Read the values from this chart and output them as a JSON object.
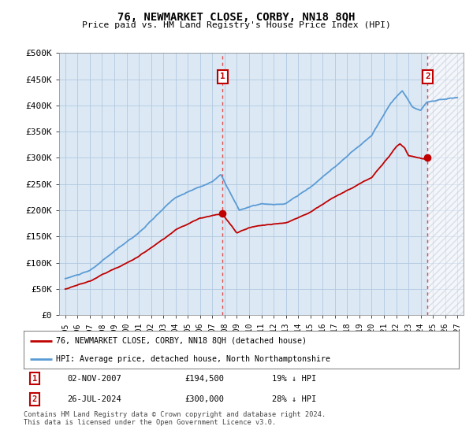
{
  "title": "76, NEWMARKET CLOSE, CORBY, NN18 8QH",
  "subtitle": "Price paid vs. HM Land Registry's House Price Index (HPI)",
  "ylabel_ticks": [
    "£0",
    "£50K",
    "£100K",
    "£150K",
    "£200K",
    "£250K",
    "£300K",
    "£350K",
    "£400K",
    "£450K",
    "£500K"
  ],
  "ylim": [
    0,
    500000
  ],
  "xlim_start": 1994.5,
  "xlim_end": 2027.5,
  "xticks": [
    1995,
    1996,
    1997,
    1998,
    1999,
    2000,
    2001,
    2002,
    2003,
    2004,
    2005,
    2006,
    2007,
    2008,
    2009,
    2010,
    2011,
    2012,
    2013,
    2014,
    2015,
    2016,
    2017,
    2018,
    2019,
    2020,
    2021,
    2022,
    2023,
    2024,
    2025,
    2026,
    2027
  ],
  "hpi_color": "#5b9bd5",
  "price_color": "#c00000",
  "plot_bg_color": "#dce9f5",
  "marker1_date": 2007.84,
  "marker1_value": 194500,
  "marker1_label": "1",
  "marker2_date": 2024.56,
  "marker2_value": 300000,
  "marker2_label": "2",
  "vline1_x": 2007.84,
  "vline2_x": 2024.56,
  "legend_line1": "76, NEWMARKET CLOSE, CORBY, NN18 8QH (detached house)",
  "legend_line2": "HPI: Average price, detached house, North Northamptonshire",
  "table_row1": [
    "1",
    "02-NOV-2007",
    "£194,500",
    "19% ↓ HPI"
  ],
  "table_row2": [
    "2",
    "26-JUL-2024",
    "£300,000",
    "28% ↓ HPI"
  ],
  "footer": "Contains HM Land Registry data © Crown copyright and database right 2024.\nThis data is licensed under the Open Government Licence v3.0.",
  "bg_color": "#ffffff",
  "grid_color": "#b0c8e0"
}
